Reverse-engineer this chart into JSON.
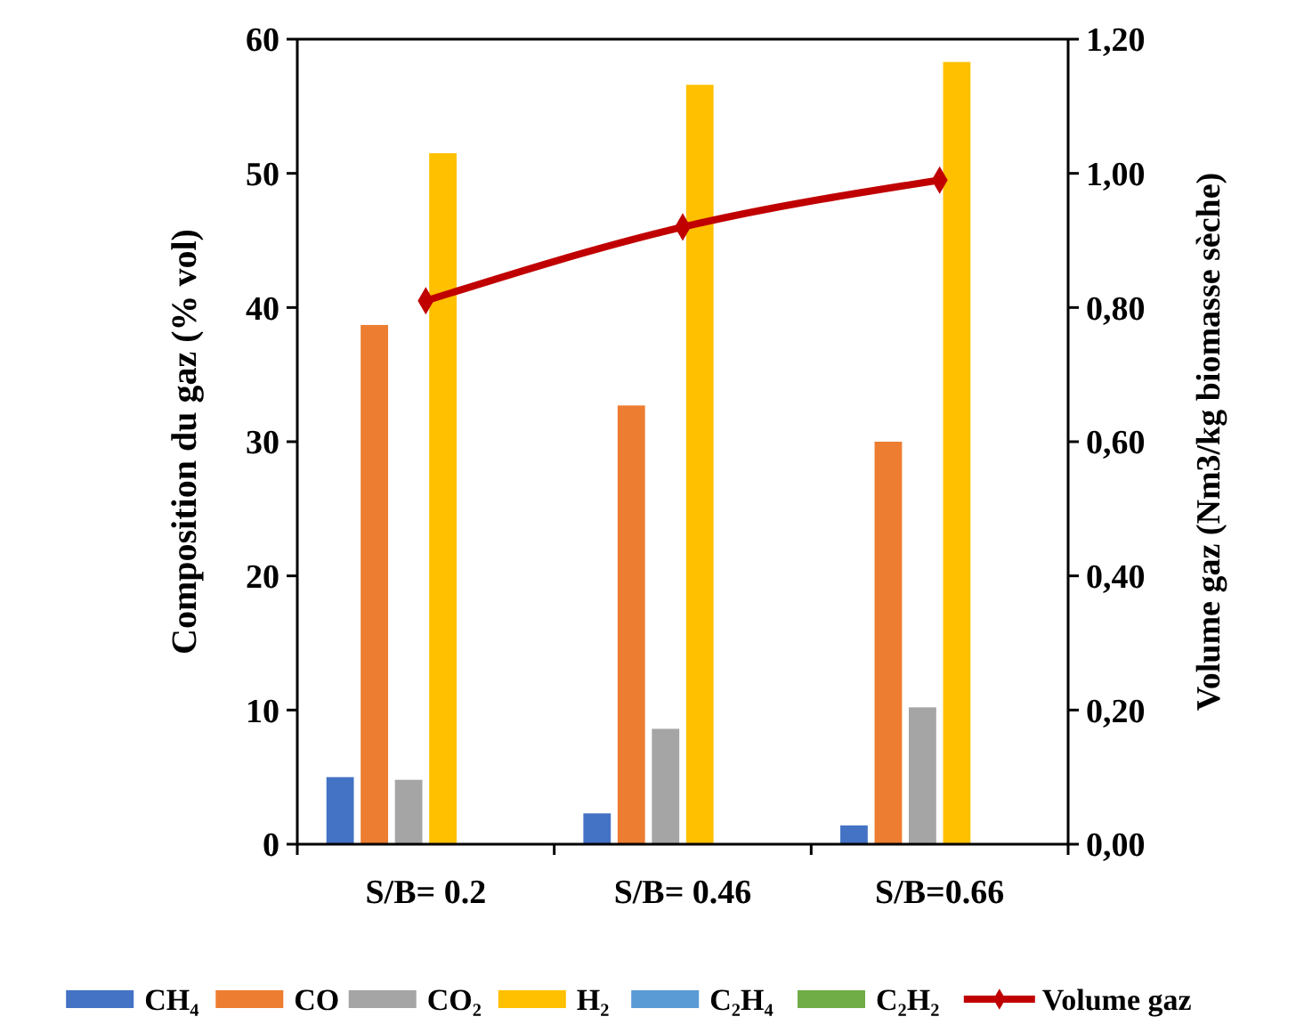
{
  "chart_data": {
    "type": "bar",
    "xlabel": null,
    "ylabel": "Composition du gaz (% vol)",
    "y2label": "Volume gaz (Nm3/kg biomasse sèche)",
    "categories": [
      "S/B= 0.2",
      "S/B= 0.46",
      "S/B=0.66"
    ],
    "series": [
      {
        "name": "CH₄",
        "color": "#4472c4",
        "values": [
          5.0,
          2.3,
          1.4
        ]
      },
      {
        "name": "CO",
        "color": "#ed7d31",
        "values": [
          38.7,
          32.7,
          30.0
        ]
      },
      {
        "name": "CO₂",
        "color": "#a5a5a5",
        "values": [
          4.8,
          8.6,
          10.2
        ]
      },
      {
        "name": "H₂",
        "color": "#ffc000",
        "values": [
          51.5,
          56.6,
          58.3
        ]
      },
      {
        "name": "C₂H₄",
        "color": "#5b9bd5",
        "values": [
          0,
          0,
          0
        ]
      },
      {
        "name": "C₂H₂",
        "color": "#70ad47",
        "values": [
          0,
          0,
          0
        ]
      },
      {
        "name": "Volume gaz",
        "type": "line",
        "axis": "y2",
        "color": "#c00000",
        "marker": "diamond",
        "values": [
          0.81,
          0.92,
          0.99
        ]
      }
    ],
    "ylim": [
      0,
      60
    ],
    "yticks": [
      0,
      10,
      20,
      30,
      40,
      50,
      60
    ],
    "y2lim": [
      0,
      1.2
    ],
    "y2ticks": [
      {
        "value": 0,
        "label": "0,00"
      },
      {
        "value": 0.2,
        "label": "0,20"
      },
      {
        "value": 0.4,
        "label": "0,40"
      },
      {
        "value": 0.6,
        "label": "0,60"
      },
      {
        "value": 0.8,
        "label": "0,80"
      },
      {
        "value": 1.0,
        "label": "1,00"
      },
      {
        "value": 1.2,
        "label": "1,20"
      }
    ],
    "grid": false,
    "legend": "bottom"
  }
}
